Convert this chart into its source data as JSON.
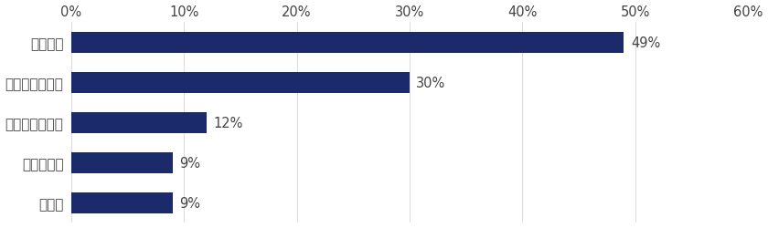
{
  "categories": [
    "大手企業",
    "中堅・中小企業",
    "ベンチャー企業",
    "外資系企業",
    "その他"
  ],
  "values": [
    49,
    30,
    12,
    9,
    9
  ],
  "bar_color": "#1b2a6b",
  "xlim": [
    0,
    60
  ],
  "xticks": [
    0,
    10,
    20,
    30,
    40,
    50,
    60
  ],
  "xtick_labels": [
    "0%",
    "10%",
    "20%",
    "30%",
    "40%",
    "50%",
    "60%"
  ],
  "background_color": "#ffffff",
  "label_fontsize": 11,
  "tick_fontsize": 10.5,
  "bar_height": 0.52,
  "value_label_fontsize": 10.5,
  "text_color": "#444444"
}
